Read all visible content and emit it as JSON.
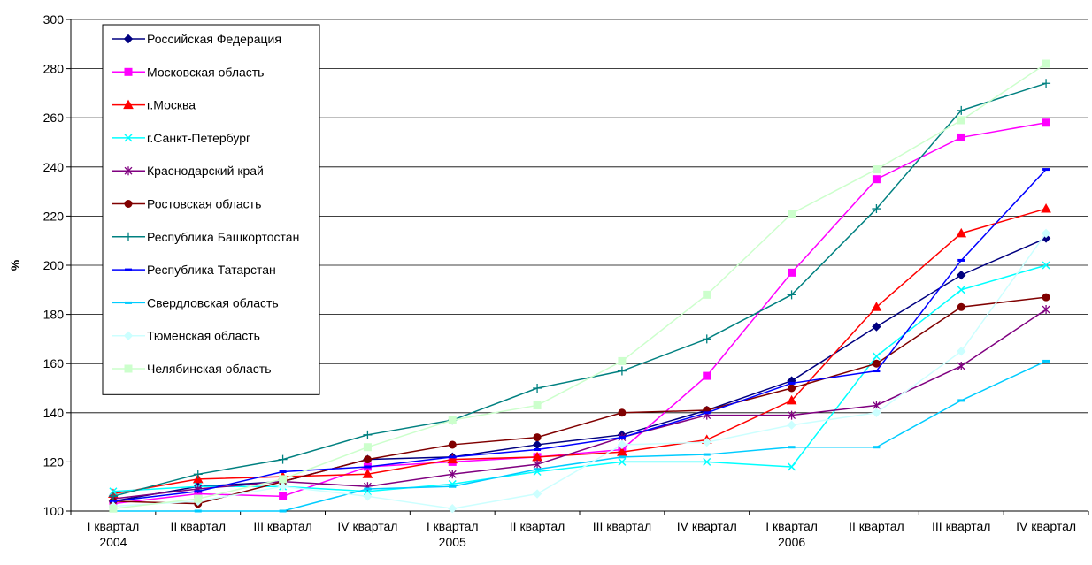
{
  "chart_data": {
    "type": "line",
    "title": "",
    "ylabel": "%",
    "ylim": [
      100,
      300
    ],
    "yticks": [
      100,
      120,
      140,
      160,
      180,
      200,
      220,
      240,
      260,
      280,
      300
    ],
    "grid": true,
    "legend_position": "top-left",
    "categories": [
      "I квартал",
      "II квартал",
      "III квартал",
      "IV квартал",
      "I квартал",
      "II квартал",
      "III квартал",
      "IV квартал",
      "I квартал",
      "II квартал",
      "III квартал",
      "IV квартал"
    ],
    "year_labels": [
      {
        "index": 0,
        "label": "2004"
      },
      {
        "index": 4,
        "label": "2005"
      },
      {
        "index": 8,
        "label": "2006"
      }
    ],
    "series": [
      {
        "name": "Российская Федерация",
        "color": "#000080",
        "marker": "diamond",
        "values": [
          104,
          110,
          112,
          121,
          122,
          127,
          131,
          141,
          153,
          175,
          196,
          211
        ]
      },
      {
        "name": "Московская область",
        "color": "#ff00ff",
        "marker": "square",
        "values": [
          103,
          107,
          106,
          118,
          120,
          122,
          125,
          155,
          197,
          235,
          252,
          258
        ]
      },
      {
        "name": "г.Москва",
        "color": "#ff0000",
        "marker": "triangle",
        "values": [
          107,
          113,
          114,
          115,
          121,
          122,
          124,
          129,
          145,
          183,
          213,
          223
        ]
      },
      {
        "name": "г.Санкт-Петербург",
        "color": "#00ffff",
        "marker": "x",
        "values": [
          108,
          110,
          110,
          108,
          111,
          116,
          120,
          120,
          118,
          163,
          190,
          200
        ]
      },
      {
        "name": "Краснодарский край",
        "color": "#800080",
        "marker": "star",
        "values": [
          105,
          109,
          112,
          110,
          115,
          119,
          130,
          139,
          139,
          143,
          159,
          182
        ]
      },
      {
        "name": "Ростовская область",
        "color": "#800000",
        "marker": "circle",
        "values": [
          104,
          103,
          112,
          121,
          127,
          130,
          140,
          141,
          150,
          160,
          183,
          187
        ]
      },
      {
        "name": "Республика Башкортостан",
        "color": "#008080",
        "marker": "plus",
        "values": [
          106,
          115,
          121,
          131,
          137,
          150,
          157,
          170,
          188,
          223,
          263,
          274
        ]
      },
      {
        "name": "Республика Татарстан",
        "color": "#0000ff",
        "marker": "dash",
        "values": [
          104,
          108,
          116,
          118,
          122,
          125,
          130,
          140,
          152,
          157,
          202,
          239
        ]
      },
      {
        "name": "Свердловская область",
        "color": "#00ccff",
        "marker": "dash",
        "values": [
          100,
          100,
          100,
          109,
          110,
          117,
          122,
          123,
          126,
          126,
          145,
          161
        ]
      },
      {
        "name": "Тюменская область",
        "color": "#ccffff",
        "marker": "diamond",
        "values": [
          102,
          104,
          110,
          106,
          101,
          107,
          127,
          128,
          135,
          140,
          165,
          213
        ]
      },
      {
        "name": "Челябинская область",
        "color": "#ccffcc",
        "marker": "square",
        "values": [
          101,
          105,
          113,
          126,
          137,
          143,
          161,
          188,
          221,
          239,
          259,
          282
        ]
      }
    ]
  }
}
